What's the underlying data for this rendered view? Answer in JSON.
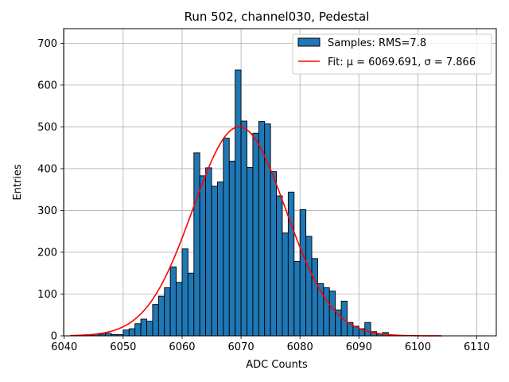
{
  "chart_data": {
    "type": "bar",
    "title": "Run 502, channel030, Pedestal",
    "xlabel": "ADC Counts",
    "ylabel": "Entries",
    "xlim": [
      6039.9,
      6113.3
    ],
    "ylim": [
      0,
      735
    ],
    "xticks": [
      6040,
      6050,
      6060,
      6070,
      6080,
      6090,
      6100,
      6110
    ],
    "yticks": [
      0,
      100,
      200,
      300,
      400,
      500,
      600,
      700
    ],
    "grid": true,
    "legend_position": "top-right",
    "bin_width": 1,
    "bins_start": [
      6042,
      6043,
      6044,
      6045,
      6046,
      6047,
      6048,
      6049,
      6050,
      6051,
      6052,
      6053,
      6054,
      6055,
      6056,
      6057,
      6058,
      6059,
      6060,
      6061,
      6062,
      6063,
      6064,
      6065,
      6066,
      6067,
      6068,
      6069,
      6070,
      6071,
      6072,
      6073,
      6074,
      6075,
      6076,
      6077,
      6078,
      6079,
      6080,
      6081,
      6082,
      6083,
      6084,
      6085,
      6086,
      6087,
      6088,
      6089,
      6090,
      6091,
      6092,
      6093,
      6094,
      6095
    ],
    "counts": [
      1,
      1,
      2,
      4,
      4,
      6,
      3,
      3,
      14,
      17,
      29,
      40,
      35,
      75,
      95,
      115,
      165,
      128,
      208,
      150,
      438,
      383,
      402,
      358,
      368,
      473,
      418,
      636,
      514,
      403,
      485,
      513,
      507,
      393,
      335,
      246,
      344,
      178,
      302,
      238,
      185,
      125,
      115,
      107,
      62,
      83,
      32,
      23,
      17,
      32,
      10,
      4,
      8,
      2
    ],
    "series": [
      {
        "name": "Samples: RMS=7.8",
        "kind": "histogram",
        "color": "#1f77b4",
        "edge": "#000000"
      },
      {
        "name": "Fit: μ = 6069.691, σ = 7.866",
        "kind": "gaussian",
        "color": "#ff0000",
        "mu": 6069.691,
        "sigma": 7.866,
        "amplitude": 500,
        "x_range": [
          6041,
          6104
        ]
      }
    ]
  }
}
